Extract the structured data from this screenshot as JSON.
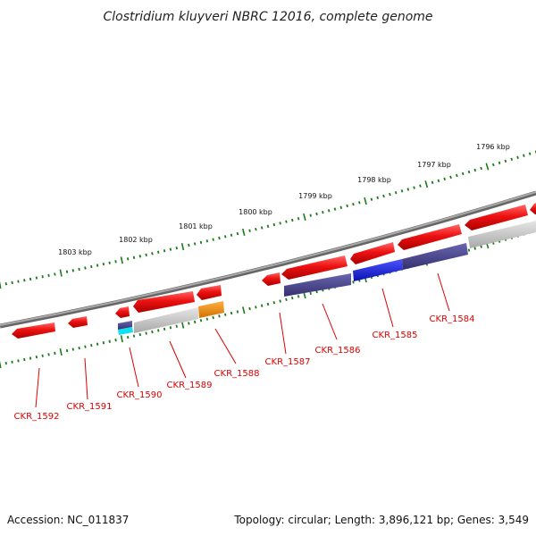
{
  "title": "Clostridium kluyveri NBRC 12016, complete genome",
  "accession": "Accession: NC_011837",
  "topology": "Topology: circular; Length: 3,896,121 bp; Genes: 3,549",
  "ruler": [
    "1803 kbp",
    "1802 kbp",
    "1801 kbp",
    "1800 kbp",
    "1799 kbp",
    "1798 kbp",
    "1797 kbp",
    "1796 kbp"
  ],
  "genes": [
    "CKR_1592",
    "CKR_1591",
    "CKR_1590",
    "CKR_1589",
    "CKR_1588",
    "CKR_1587",
    "CKR_1586",
    "CKR_1585",
    "CKR_1584"
  ],
  "colors": {
    "gene": "#ee1111",
    "backbone": "#888888",
    "tick": "#1a7a1a",
    "grey_feature": "#c8c8c8",
    "navy_feature": "#4a4690",
    "blue_feature": "#1a20e0",
    "orange_feature": "#f09010",
    "cyan_feature": "#10e0f0",
    "label": "#dd0000"
  }
}
